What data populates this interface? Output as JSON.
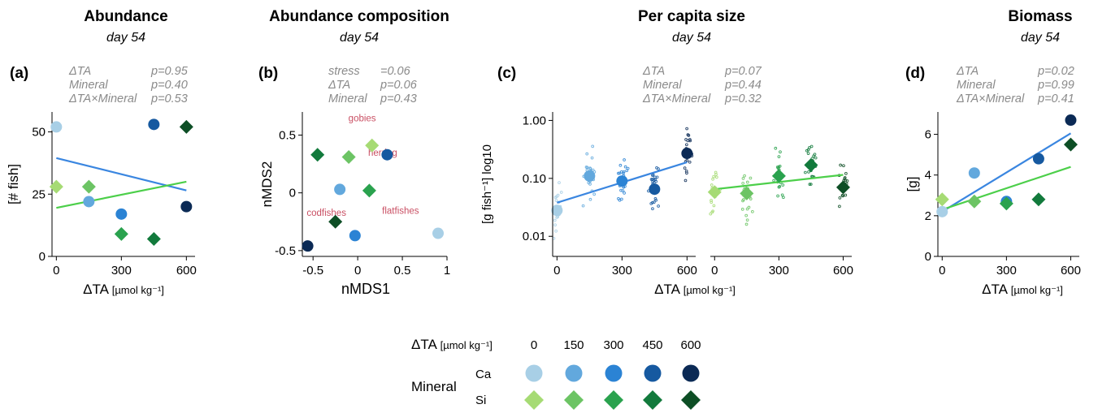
{
  "colors": {
    "Ca": [
      "#a8cfe6",
      "#62a8dd",
      "#2b83d4",
      "#1659a0",
      "#0b2a55"
    ],
    "Si": [
      "#a6db74",
      "#6cc464",
      "#2aa24e",
      "#127a3c",
      "#0d4e25"
    ],
    "line_Ca": "#3a86e0",
    "line_Si": "#4ccf4a",
    "stat_text": "#8a8a8a",
    "annotation_text": "#c94f63"
  },
  "chart_data": [
    {
      "type": "scatter",
      "panel_label": "(a)",
      "title": "Abundance",
      "subtitle": "day 54",
      "stats": [
        [
          "ΔTA",
          "p=0.95"
        ],
        [
          "Mineral",
          "p=0.40"
        ],
        [
          "ΔTA×Mineral",
          "p=0.53"
        ]
      ],
      "xlabel": "ΔTA",
      "xlabel_unit": "[µmol kg⁻¹]",
      "ylabel": "[# fish]",
      "xlim": [
        -20,
        640
      ],
      "ylim": [
        0,
        58
      ],
      "xticks": [
        0,
        300,
        600
      ],
      "yticks": [
        0,
        25,
        50
      ],
      "series": [
        {
          "name": "Ca",
          "x": [
            0,
            150,
            300,
            450,
            600
          ],
          "y": [
            52,
            22,
            17,
            53,
            20
          ]
        },
        {
          "name": "Si",
          "x": [
            0,
            150,
            300,
            450,
            600
          ],
          "y": [
            28,
            28,
            9,
            7,
            52
          ]
        }
      ],
      "fits": [
        {
          "name": "Ca",
          "x": [
            0,
            600
          ],
          "y": [
            39.5,
            26.5
          ]
        },
        {
          "name": "Si",
          "x": [
            0,
            600
          ],
          "y": [
            19.5,
            30
          ]
        }
      ]
    },
    {
      "type": "scatter",
      "panel_label": "(b)",
      "title": "Abundance composition",
      "subtitle": "day 54",
      "stats": [
        [
          "stress",
          "=0.06"
        ],
        [
          "ΔTA",
          "p=0.06"
        ],
        [
          "Mineral",
          "p=0.43"
        ]
      ],
      "xlabel": "nMDS1",
      "ylabel": "nMDS2",
      "xlim": [
        -0.62,
        1.0
      ],
      "ylim": [
        -0.55,
        0.7
      ],
      "xticks": [
        -0.5,
        0,
        0.5,
        1
      ],
      "xtick_labels": [
        "-0.5",
        "0",
        "0.5",
        "1"
      ],
      "yticks": [
        -0.5,
        0,
        0.5
      ],
      "ytick_labels": [
        "-0.5",
        "0",
        "0.5"
      ],
      "series": [
        {
          "name": "Ca",
          "x": [
            0.9,
            -0.2,
            -0.03,
            0.33,
            -0.56
          ],
          "y": [
            -0.35,
            0.03,
            -0.37,
            0.33,
            -0.46
          ]
        },
        {
          "name": "Si",
          "x": [
            0.16,
            -0.1,
            0.13,
            -0.45,
            -0.25
          ],
          "y": [
            0.41,
            0.31,
            0.02,
            0.33,
            -0.25
          ]
        }
      ],
      "annotations": [
        {
          "text": "gobies",
          "x": 0.05,
          "y": 0.62
        },
        {
          "text": "herring",
          "x": 0.28,
          "y": 0.32
        },
        {
          "text": "codfishes",
          "x": -0.35,
          "y": -0.2
        },
        {
          "text": "flatfishes",
          "x": 0.48,
          "y": -0.18
        }
      ]
    },
    {
      "type": "scatter",
      "panel_label": "(c)",
      "title": "Per capita size",
      "subtitle": "day 54",
      "stats": [
        [
          "ΔTA",
          "p=0.07"
        ],
        [
          "Mineral",
          "p=0.44"
        ],
        [
          "ΔTA×Mineral",
          "p=0.32"
        ]
      ],
      "xlabel": "ΔTA",
      "xlabel_unit": "[µmol kg⁻¹]",
      "ylabel": "[g fish⁻¹] log10",
      "yscale": "log",
      "xlim": [
        -20,
        640
      ],
      "ylim": [
        0.0045,
        1.4
      ],
      "xticks": [
        0,
        300,
        600
      ],
      "yticks": [
        0.01,
        0.1,
        1
      ],
      "ytick_labels": [
        "0.01",
        "0.10",
        "1.00"
      ],
      "facets": [
        {
          "name": "Ca",
          "means": {
            "x": [
              0,
              150,
              300,
              450,
              600
            ],
            "y": [
              0.028,
              0.11,
              0.09,
              0.065,
              0.27
            ]
          },
          "fit": {
            "x": [
              0,
              600
            ],
            "y": [
              0.038,
              0.19
            ]
          }
        },
        {
          "name": "Si",
          "means": {
            "x": [
              0,
              150,
              300,
              450,
              600
            ],
            "y": [
              0.058,
              0.055,
              0.11,
              0.17,
              0.07
            ]
          },
          "fit": {
            "x": [
              0,
              600
            ],
            "y": [
              0.065,
              0.115
            ]
          }
        }
      ]
    },
    {
      "type": "scatter",
      "panel_label": "(d)",
      "title": "Biomass",
      "subtitle": "day 54",
      "stats": [
        [
          "ΔTA",
          "p=0.02"
        ],
        [
          "Mineral",
          "p=0.99"
        ],
        [
          "ΔTA×Mineral",
          "p=0.41"
        ]
      ],
      "xlabel": "ΔTA",
      "xlabel_unit": "[µmol kg⁻¹]",
      "ylabel": "[g]",
      "xlim": [
        -20,
        640
      ],
      "ylim": [
        0,
        7.1
      ],
      "xticks": [
        0,
        300,
        600
      ],
      "yticks": [
        0,
        2,
        4,
        6
      ],
      "series": [
        {
          "name": "Ca",
          "x": [
            0,
            150,
            300,
            450,
            600
          ],
          "y": [
            2.2,
            4.1,
            2.7,
            4.8,
            6.7
          ]
        },
        {
          "name": "Si",
          "x": [
            0,
            150,
            300,
            450,
            600
          ],
          "y": [
            2.8,
            2.7,
            2.6,
            2.8,
            5.5
          ]
        }
      ],
      "fits": [
        {
          "name": "Ca",
          "x": [
            0,
            600
          ],
          "y": [
            2.2,
            6.05
          ]
        },
        {
          "name": "Si",
          "x": [
            0,
            600
          ],
          "y": [
            2.3,
            4.4
          ]
        }
      ]
    }
  ],
  "legend": {
    "ta_label": "ΔTA",
    "ta_unit": "[µmol kg⁻¹]",
    "levels": [
      "0",
      "150",
      "300",
      "450",
      "600"
    ],
    "mineral_label": "Mineral",
    "minerals": [
      "Ca",
      "Si"
    ]
  }
}
